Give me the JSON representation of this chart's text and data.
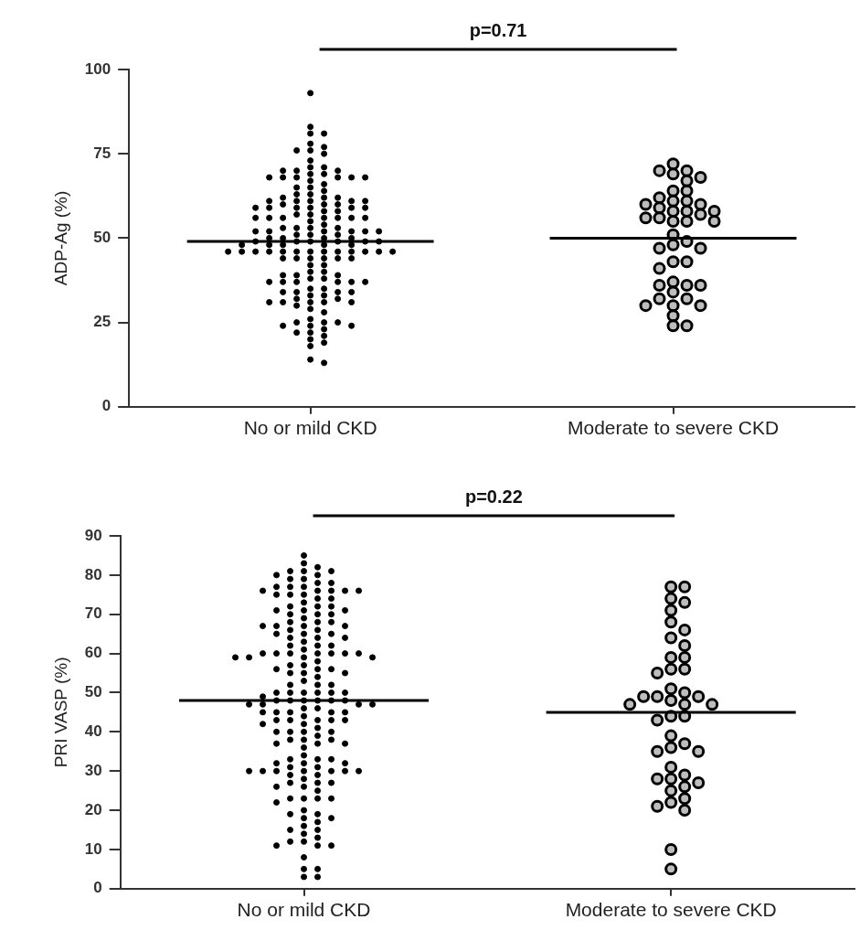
{
  "chart_data": [
    {
      "type": "scatter",
      "categories": [
        "No or mild CKD",
        "Moderate to severe CKD"
      ],
      "ylabel": "ADP-Ag (%)",
      "ylim": [
        0,
        100
      ],
      "yticks": [
        0,
        25,
        50,
        75,
        100
      ],
      "annotations": [
        "p=0.71"
      ],
      "series": [
        {
          "type": "scatter",
          "color": "#000000",
          "marker": "circle",
          "x": [
            "No or mild CKD",
            "No or mild CKD",
            "No or mild CKD",
            "No or mild CKD",
            "No or mild CKD",
            "No or mild CKD",
            "No or mild CKD",
            "No or mild CKD",
            "No or mild CKD",
            "No or mild CKD",
            "No or mild CKD",
            "No or mild CKD",
            "No or mild CKD",
            "No or mild CKD",
            "No or mild CKD",
            "No or mild CKD",
            "No or mild CKD",
            "No or mild CKD",
            "No or mild CKD",
            "No or mild CKD",
            "No or mild CKD",
            "No or mild CKD",
            "No or mild CKD",
            "No or mild CKD",
            "No or mild CKD",
            "No or mild CKD",
            "No or mild CKD",
            "No or mild CKD",
            "No or mild CKD",
            "No or mild CKD",
            "No or mild CKD",
            "No or mild CKD",
            "No or mild CKD",
            "No or mild CKD",
            "No or mild CKD",
            "No or mild CKD",
            "No or mild CKD",
            "No or mild CKD",
            "No or mild CKD",
            "No or mild CKD",
            "No or mild CKD",
            "No or mild CKD",
            "No or mild CKD",
            "No or mild CKD",
            "No or mild CKD",
            "No or mild CKD",
            "No or mild CKD",
            "No or mild CKD",
            "No or mild CKD",
            "No or mild CKD",
            "No or mild CKD",
            "No or mild CKD",
            "No or mild CKD",
            "No or mild CKD",
            "No or mild CKD",
            "No or mild CKD",
            "No or mild CKD",
            "No or mild CKD",
            "No or mild CKD",
            "No or mild CKD",
            "No or mild CKD",
            "No or mild CKD",
            "No or mild CKD",
            "No or mild CKD",
            "No or mild CKD",
            "No or mild CKD",
            "No or mild CKD",
            "No or mild CKD",
            "No or mild CKD",
            "No or mild CKD",
            "No or mild CKD",
            "No or mild CKD",
            "No or mild CKD",
            "No or mild CKD",
            "No or mild CKD",
            "No or mild CKD",
            "No or mild CKD",
            "No or mild CKD",
            "No or mild CKD",
            "No or mild CKD",
            "No or mild CKD",
            "No or mild CKD",
            "No or mild CKD",
            "No or mild CKD",
            "No or mild CKD",
            "No or mild CKD",
            "No or mild CKD",
            "No or mild CKD",
            "No or mild CKD",
            "No or mild CKD",
            "No or mild CKD",
            "No or mild CKD",
            "No or mild CKD",
            "No or mild CKD",
            "No or mild CKD",
            "No or mild CKD",
            "No or mild CKD",
            "No or mild CKD",
            "No or mild CKD",
            "No or mild CKD",
            "No or mild CKD",
            "No or mild CKD",
            "No or mild CKD",
            "No or mild CKD",
            "No or mild CKD",
            "No or mild CKD",
            "No or mild CKD",
            "No or mild CKD",
            "No or mild CKD",
            "No or mild CKD",
            "No or mild CKD",
            "No or mild CKD",
            "No or mild CKD",
            "No or mild CKD",
            "No or mild CKD",
            "No or mild CKD",
            "No or mild CKD",
            "No or mild CKD",
            "No or mild CKD",
            "No or mild CKD",
            "No or mild CKD",
            "No or mild CKD",
            "No or mild CKD",
            "No or mild CKD",
            "No or mild CKD",
            "No or mild CKD",
            "No or mild CKD",
            "No or mild CKD",
            "No or mild CKD",
            "No or mild CKD",
            "No or mild CKD",
            "No or mild CKD",
            "No or mild CKD",
            "No or mild CKD",
            "No or mild CKD",
            "No or mild CKD",
            "No or mild CKD",
            "No or mild CKD",
            "No or mild CKD",
            "No or mild CKD",
            "No or mild CKD",
            "No or mild CKD",
            "No or mild CKD",
            "No or mild CKD",
            "No or mild CKD",
            "No or mild CKD",
            "No or mild CKD",
            "No or mild CKD",
            "No or mild CKD",
            "No or mild CKD",
            "No or mild CKD",
            "No or mild CKD",
            "No or mild CKD",
            "No or mild CKD",
            "No or mild CKD",
            "No or mild CKD"
          ],
          "values": [
            93,
            83,
            81,
            81,
            78,
            77,
            76,
            76,
            75,
            73,
            71,
            71,
            70,
            70,
            70,
            69,
            69,
            68,
            68,
            68,
            68,
            68,
            68,
            67,
            66,
            65,
            65,
            64,
            63,
            63,
            62,
            62,
            62,
            61,
            61,
            61,
            61,
            61,
            60,
            60,
            60,
            59,
            59,
            59,
            59,
            59,
            59,
            58,
            58,
            57,
            57,
            56,
            56,
            56,
            56,
            56,
            56,
            56,
            55,
            54,
            53,
            53,
            53,
            53,
            52,
            52,
            52,
            52,
            52,
            52,
            51,
            51,
            51,
            50,
            50,
            50,
            50,
            49,
            49,
            49,
            49,
            49,
            49,
            48,
            48,
            48,
            48,
            48,
            46,
            46,
            46,
            46,
            46,
            46,
            46,
            46,
            46,
            46,
            46,
            46,
            46,
            44,
            44,
            44,
            44,
            44,
            44,
            42,
            42,
            40,
            40,
            39,
            39,
            39,
            38,
            38,
            37,
            37,
            37,
            37,
            37,
            37,
            35,
            35,
            34,
            34,
            34,
            34,
            33,
            33,
            32,
            32,
            31,
            31,
            31,
            31,
            31,
            30,
            29,
            28,
            26,
            25,
            25,
            25,
            24,
            24,
            24,
            23,
            22,
            22,
            21,
            20,
            19,
            18,
            14,
            13
          ]
        },
        {
          "type": "scatter",
          "color": "#000000",
          "marker": "circle",
          "x": [
            "Moderate to severe CKD",
            "Moderate to severe CKD",
            "Moderate to severe CKD",
            "Moderate to severe CKD",
            "Moderate to severe CKD",
            "Moderate to severe CKD",
            "Moderate to severe CKD",
            "Moderate to severe CKD",
            "Moderate to severe CKD",
            "Moderate to severe CKD",
            "Moderate to severe CKD",
            "Moderate to severe CKD",
            "Moderate to severe CKD",
            "Moderate to severe CKD",
            "Moderate to severe CKD",
            "Moderate to severe CKD",
            "Moderate to severe CKD",
            "Moderate to severe CKD",
            "Moderate to severe CKD",
            "Moderate to severe CKD",
            "Moderate to severe CKD",
            "Moderate to severe CKD",
            "Moderate to severe CKD",
            "Moderate to severe CKD",
            "Moderate to severe CKD",
            "Moderate to severe CKD",
            "Moderate to severe CKD",
            "Moderate to severe CKD",
            "Moderate to severe CKD",
            "Moderate to severe CKD",
            "Moderate to severe CKD",
            "Moderate to severe CKD",
            "Moderate to severe CKD",
            "Moderate to severe CKD",
            "Moderate to severe CKD",
            "Moderate to severe CKD",
            "Moderate to severe CKD",
            "Moderate to severe CKD",
            "Moderate to severe CKD",
            "Moderate to severe CKD",
            "Moderate to severe CKD",
            "Moderate to severe CKD",
            "Moderate to severe CKD",
            "Moderate to severe CKD"
          ],
          "values": [
            72,
            70,
            70,
            69,
            68,
            67,
            64,
            64,
            62,
            61,
            61,
            60,
            60,
            59,
            58,
            58,
            58,
            57,
            56,
            56,
            55,
            55,
            55,
            51,
            49,
            48,
            47,
            47,
            43,
            43,
            41,
            37,
            36,
            36,
            36,
            34,
            32,
            32,
            30,
            30,
            30,
            27,
            24,
            24
          ]
        }
      ],
      "ref_lines": [
        {
          "axis": "y",
          "value": 49,
          "color": "#000000"
        },
        {
          "axis": "y",
          "value": 50,
          "color": "#000000"
        }
      ]
    },
    {
      "type": "scatter",
      "categories": [
        "No or mild CKD",
        "Moderate to severe CKD"
      ],
      "ylabel": "PRI VASP (%)",
      "ylim": [
        0,
        90
      ],
      "yticks": [
        0,
        10,
        20,
        30,
        40,
        50,
        60,
        70,
        80,
        90
      ],
      "annotations": [
        "p=0.22"
      ],
      "series": [
        {
          "type": "scatter",
          "color": "#000000",
          "marker": "circle",
          "x": [
            "No or mild CKD",
            "No or mild CKD",
            "No or mild CKD",
            "No or mild CKD",
            "No or mild CKD",
            "No or mild CKD",
            "No or mild CKD",
            "No or mild CKD",
            "No or mild CKD",
            "No or mild CKD",
            "No or mild CKD",
            "No or mild CKD",
            "No or mild CKD",
            "No or mild CKD",
            "No or mild CKD",
            "No or mild CKD",
            "No or mild CKD",
            "No or mild CKD",
            "No or mild CKD",
            "No or mild CKD",
            "No or mild CKD",
            "No or mild CKD",
            "No or mild CKD",
            "No or mild CKD",
            "No or mild CKD",
            "No or mild CKD",
            "No or mild CKD",
            "No or mild CKD",
            "No or mild CKD",
            "No or mild CKD",
            "No or mild CKD",
            "No or mild CKD",
            "No or mild CKD",
            "No or mild CKD",
            "No or mild CKD",
            "No or mild CKD",
            "No or mild CKD",
            "No or mild CKD",
            "No or mild CKD",
            "No or mild CKD",
            "No or mild CKD",
            "No or mild CKD",
            "No or mild CKD",
            "No or mild CKD",
            "No or mild CKD",
            "No or mild CKD",
            "No or mild CKD",
            "No or mild CKD",
            "No or mild CKD",
            "No or mild CKD",
            "No or mild CKD",
            "No or mild CKD",
            "No or mild CKD",
            "No or mild CKD",
            "No or mild CKD",
            "No or mild CKD",
            "No or mild CKD",
            "No or mild CKD",
            "No or mild CKD",
            "No or mild CKD",
            "No or mild CKD",
            "No or mild CKD",
            "No or mild CKD",
            "No or mild CKD",
            "No or mild CKD",
            "No or mild CKD",
            "No or mild CKD",
            "No or mild CKD",
            "No or mild CKD",
            "No or mild CKD",
            "No or mild CKD",
            "No or mild CKD",
            "No or mild CKD",
            "No or mild CKD",
            "No or mild CKD",
            "No or mild CKD",
            "No or mild CKD",
            "No or mild CKD",
            "No or mild CKD",
            "No or mild CKD",
            "No or mild CKD",
            "No or mild CKD",
            "No or mild CKD",
            "No or mild CKD",
            "No or mild CKD",
            "No or mild CKD",
            "No or mild CKD",
            "No or mild CKD",
            "No or mild CKD",
            "No or mild CKD",
            "No or mild CKD",
            "No or mild CKD",
            "No or mild CKD",
            "No or mild CKD",
            "No or mild CKD",
            "No or mild CKD",
            "No or mild CKD",
            "No or mild CKD",
            "No or mild CKD",
            "No or mild CKD",
            "No or mild CKD",
            "No or mild CKD",
            "No or mild CKD",
            "No or mild CKD",
            "No or mild CKD",
            "No or mild CKD",
            "No or mild CKD",
            "No or mild CKD",
            "No or mild CKD",
            "No or mild CKD",
            "No or mild CKD",
            "No or mild CKD",
            "No or mild CKD",
            "No or mild CKD",
            "No or mild CKD",
            "No or mild CKD",
            "No or mild CKD",
            "No or mild CKD",
            "No or mild CKD",
            "No or mild CKD",
            "No or mild CKD",
            "No or mild CKD",
            "No or mild CKD",
            "No or mild CKD",
            "No or mild CKD",
            "No or mild CKD",
            "No or mild CKD",
            "No or mild CKD",
            "No or mild CKD",
            "No or mild CKD",
            "No or mild CKD",
            "No or mild CKD",
            "No or mild CKD",
            "No or mild CKD",
            "No or mild CKD",
            "No or mild CKD",
            "No or mild CKD",
            "No or mild CKD",
            "No or mild CKD",
            "No or mild CKD",
            "No or mild CKD",
            "No or mild CKD",
            "No or mild CKD",
            "No or mild CKD",
            "No or mild CKD",
            "No or mild CKD",
            "No or mild CKD",
            "No or mild CKD",
            "No or mild CKD",
            "No or mild CKD",
            "No or mild CKD",
            "No or mild CKD",
            "No or mild CKD",
            "No or mild CKD",
            "No or mild CKD",
            "No or mild CKD",
            "No or mild CKD",
            "No or mild CKD",
            "No or mild CKD",
            "No or mild CKD",
            "No or mild CKD",
            "No or mild CKD",
            "No or mild CKD",
            "No or mild CKD",
            "No or mild CKD",
            "No or mild CKD",
            "No or mild CKD",
            "No or mild CKD",
            "No or mild CKD",
            "No or mild CKD",
            "No or mild CKD",
            "No or mild CKD",
            "No or mild CKD",
            "No or mild CKD",
            "No or mild CKD",
            "No or mild CKD",
            "No or mild CKD"
          ],
          "values": [
            85,
            83,
            82,
            81,
            81,
            81,
            80,
            80,
            79,
            79,
            78,
            78,
            77,
            77,
            77,
            76,
            76,
            76,
            76,
            76,
            75,
            75,
            75,
            74,
            74,
            73,
            72,
            72,
            72,
            71,
            71,
            71,
            70,
            70,
            70,
            69,
            68,
            68,
            68,
            67,
            67,
            67,
            67,
            66,
            66,
            65,
            65,
            65,
            64,
            64,
            64,
            63,
            62,
            62,
            62,
            61,
            60,
            60,
            60,
            60,
            60,
            60,
            60,
            59,
            59,
            59,
            59,
            58,
            57,
            57,
            56,
            56,
            56,
            55,
            55,
            55,
            54,
            53,
            52,
            52,
            52,
            50,
            50,
            50,
            50,
            50,
            50,
            49,
            48,
            48,
            48,
            48,
            48,
            48,
            47,
            47,
            47,
            47,
            46,
            46,
            45,
            45,
            45,
            45,
            45,
            44,
            43,
            43,
            43,
            43,
            43,
            42,
            42,
            41,
            40,
            40,
            40,
            40,
            39,
            38,
            38,
            38,
            37,
            37,
            37,
            36,
            34,
            33,
            33,
            33,
            32,
            32,
            32,
            31,
            31,
            30,
            30,
            30,
            30,
            30,
            30,
            30,
            29,
            29,
            28,
            27,
            27,
            27,
            26,
            26,
            25,
            23,
            23,
            23,
            23,
            22,
            20,
            19,
            19,
            18,
            18,
            17,
            16,
            15,
            15,
            14,
            13,
            12,
            12,
            11,
            11,
            11,
            8,
            5,
            5,
            3,
            3
          ]
        },
        {
          "type": "scatter",
          "color": "#000000",
          "marker": "circle",
          "x": [
            "Moderate to severe CKD",
            "Moderate to severe CKD",
            "Moderate to severe CKD",
            "Moderate to severe CKD",
            "Moderate to severe CKD",
            "Moderate to severe CKD",
            "Moderate to severe CKD",
            "Moderate to severe CKD",
            "Moderate to severe CKD",
            "Moderate to severe CKD",
            "Moderate to severe CKD",
            "Moderate to severe CKD",
            "Moderate to severe CKD",
            "Moderate to severe CKD",
            "Moderate to severe CKD",
            "Moderate to severe CKD",
            "Moderate to severe CKD",
            "Moderate to severe CKD",
            "Moderate to severe CKD",
            "Moderate to severe CKD",
            "Moderate to severe CKD",
            "Moderate to severe CKD",
            "Moderate to severe CKD",
            "Moderate to severe CKD",
            "Moderate to severe CKD",
            "Moderate to severe CKD",
            "Moderate to severe CKD",
            "Moderate to severe CKD",
            "Moderate to severe CKD",
            "Moderate to severe CKD",
            "Moderate to severe CKD",
            "Moderate to severe CKD",
            "Moderate to severe CKD",
            "Moderate to severe CKD",
            "Moderate to severe CKD",
            "Moderate to severe CKD",
            "Moderate to severe CKD",
            "Moderate to severe CKD",
            "Moderate to severe CKD",
            "Moderate to severe CKD",
            "Moderate to severe CKD",
            "Moderate to severe CKD",
            "Moderate to severe CKD",
            "Moderate to severe CKD"
          ],
          "values": [
            77,
            77,
            74,
            73,
            71,
            68,
            66,
            64,
            62,
            59,
            59,
            56,
            56,
            55,
            51,
            50,
            49,
            49,
            49,
            48,
            47,
            47,
            47,
            44,
            44,
            43,
            39,
            37,
            36,
            35,
            35,
            31,
            29,
            28,
            28,
            27,
            26,
            25,
            23,
            22,
            21,
            20,
            10,
            5
          ]
        }
      ],
      "ref_lines": [
        {
          "axis": "y",
          "value": 48,
          "color": "#000000"
        },
        {
          "axis": "y",
          "value": 45,
          "color": "#000000"
        }
      ]
    }
  ]
}
